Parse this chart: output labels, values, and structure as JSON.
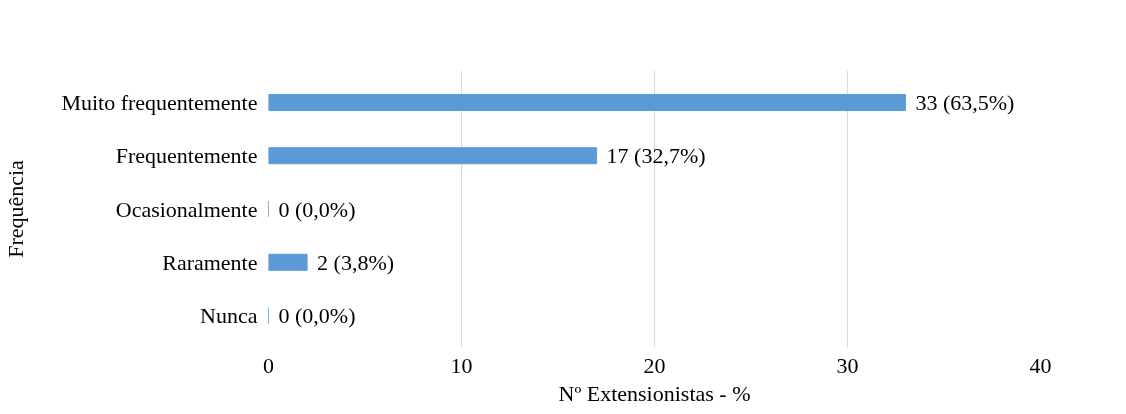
{
  "chart_data": {
    "type": "bar",
    "orientation": "horizontal",
    "xlabel": "Nº Extensionistas - %",
    "ylabel": "Frequência",
    "categories": [
      "Muito frequentemente",
      "Frequentemente",
      "Ocasionalmente",
      "Raramente",
      "Nunca"
    ],
    "values": [
      33,
      17,
      0,
      2,
      0
    ],
    "value_labels": [
      "33 (63,5%)",
      "17 (32,7%)",
      "0 (0,0%)",
      "2 (3,8%)",
      "0 (0,0%)"
    ],
    "color": "#5b9bd5",
    "xlim": [
      0,
      40
    ],
    "xticks": [
      0,
      10,
      20,
      30,
      40
    ],
    "grid": "x"
  }
}
